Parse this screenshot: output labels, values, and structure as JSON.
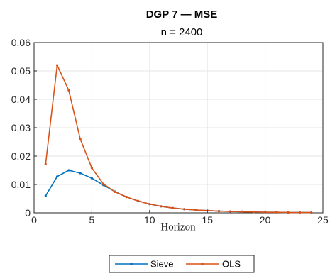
{
  "chart_data": {
    "type": "line",
    "title": "DGP 7  —  MSE",
    "subtitle": "n = 2400",
    "xlabel": "Horizon",
    "ylabel": "",
    "xlim": [
      0,
      25
    ],
    "ylim": [
      0,
      0.06
    ],
    "xticks": [
      "0",
      "5",
      "10",
      "15",
      "20",
      "25"
    ],
    "yticks": [
      "0",
      "0.01",
      "0.02",
      "0.03",
      "0.04",
      "0.05",
      "0.06"
    ],
    "grid": true,
    "legend": "bottom-center",
    "x": [
      1,
      2,
      3,
      4,
      5,
      6,
      7,
      8,
      9,
      10,
      11,
      12,
      13,
      14,
      15,
      16,
      17,
      18,
      19,
      20,
      21,
      22,
      23,
      24
    ],
    "series": [
      {
        "name": "Sieve",
        "color": "#0072bd",
        "values": [
          0.006,
          0.0128,
          0.015,
          0.014,
          0.0122,
          0.0098,
          0.0075,
          0.0056,
          0.0042,
          0.0031,
          0.0023,
          0.0017,
          0.0013,
          0.001,
          0.0008,
          0.0006,
          0.0005,
          0.0004,
          0.0003,
          0.0002,
          0.0002,
          0.0001,
          0.0001,
          0.0001
        ]
      },
      {
        "name": "OLS",
        "color": "#d95319",
        "values": [
          0.0172,
          0.052,
          0.0432,
          0.026,
          0.0158,
          0.0102,
          0.0074,
          0.0056,
          0.0042,
          0.0031,
          0.0023,
          0.0017,
          0.0013,
          0.001,
          0.0008,
          0.0006,
          0.0005,
          0.0004,
          0.0003,
          0.0002,
          0.0002,
          0.0001,
          0.0001,
          0.0001
        ]
      }
    ]
  }
}
